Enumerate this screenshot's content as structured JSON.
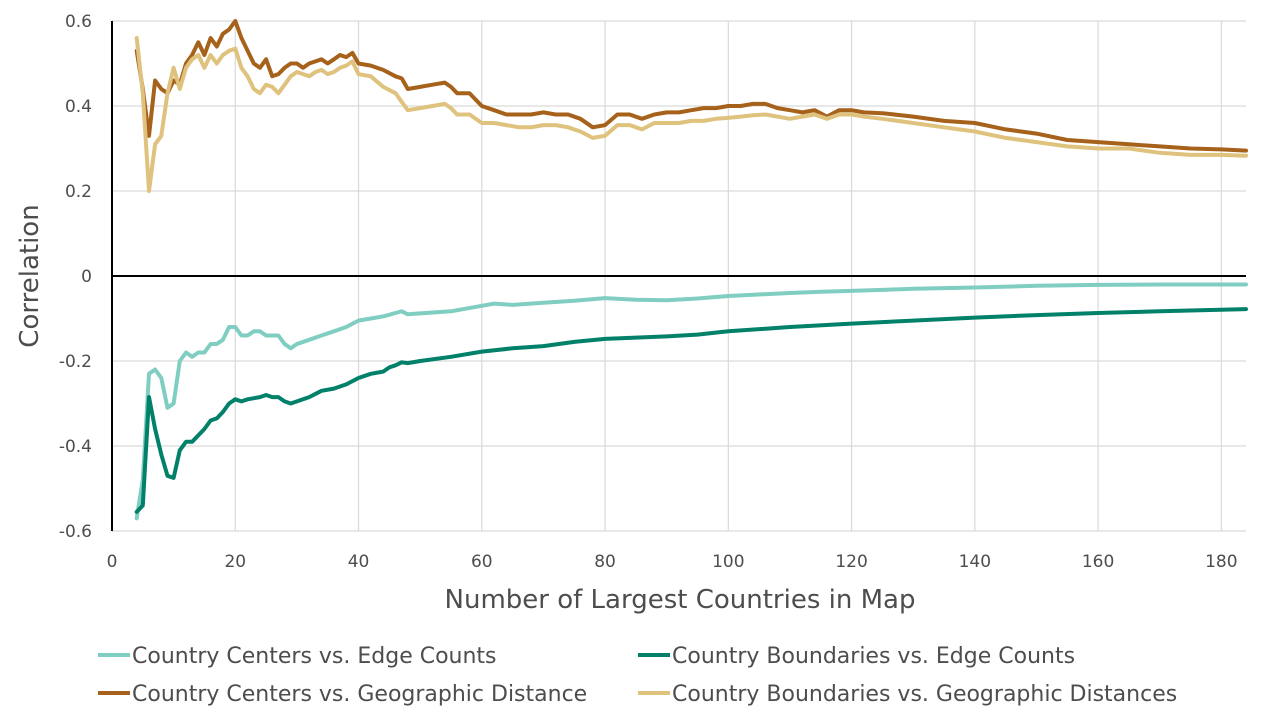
{
  "chart_data": {
    "type": "line",
    "xlabel": "Number of Largest Countries in Map",
    "ylabel": "Correlation",
    "xlim": [
      0,
      184
    ],
    "ylim": [
      -0.6,
      0.6
    ],
    "x_ticks": [
      "0",
      "20",
      "40",
      "60",
      "80",
      "100",
      "120",
      "140",
      "160",
      "180"
    ],
    "y_ticks": [
      "-0.6",
      "-0.4",
      "-0.2",
      "0",
      "0.2",
      "0.4",
      "0.6"
    ],
    "grid": true,
    "legend_position": "bottom",
    "series": [
      {
        "name": "Country Centers vs. Edge Counts",
        "color": "#80cdc1",
        "points": [
          [
            4,
            -0.57
          ],
          [
            5,
            -0.48
          ],
          [
            6,
            -0.23
          ],
          [
            7,
            -0.22
          ],
          [
            8,
            -0.24
          ],
          [
            9,
            -0.31
          ],
          [
            10,
            -0.3
          ],
          [
            11,
            -0.2
          ],
          [
            12,
            -0.18
          ],
          [
            13,
            -0.19
          ],
          [
            14,
            -0.18
          ],
          [
            15,
            -0.18
          ],
          [
            16,
            -0.16
          ],
          [
            17,
            -0.16
          ],
          [
            18,
            -0.15
          ],
          [
            19,
            -0.12
          ],
          [
            20,
            -0.12
          ],
          [
            21,
            -0.14
          ],
          [
            22,
            -0.14
          ],
          [
            23,
            -0.13
          ],
          [
            24,
            -0.13
          ],
          [
            25,
            -0.14
          ],
          [
            26,
            -0.14
          ],
          [
            27,
            -0.14
          ],
          [
            28,
            -0.16
          ],
          [
            29,
            -0.17
          ],
          [
            30,
            -0.16
          ],
          [
            32,
            -0.15
          ],
          [
            34,
            -0.14
          ],
          [
            36,
            -0.13
          ],
          [
            38,
            -0.12
          ],
          [
            40,
            -0.105
          ],
          [
            42,
            -0.1
          ],
          [
            44,
            -0.095
          ],
          [
            46,
            -0.087
          ],
          [
            47,
            -0.083
          ],
          [
            48,
            -0.09
          ],
          [
            50,
            -0.088
          ],
          [
            55,
            -0.083
          ],
          [
            60,
            -0.07
          ],
          [
            62,
            -0.065
          ],
          [
            65,
            -0.068
          ],
          [
            70,
            -0.063
          ],
          [
            75,
            -0.058
          ],
          [
            80,
            -0.052
          ],
          [
            85,
            -0.056
          ],
          [
            90,
            -0.057
          ],
          [
            95,
            -0.053
          ],
          [
            100,
            -0.047
          ],
          [
            110,
            -0.04
          ],
          [
            115,
            -0.037
          ],
          [
            120,
            -0.035
          ],
          [
            130,
            -0.03
          ],
          [
            140,
            -0.027
          ],
          [
            150,
            -0.023
          ],
          [
            160,
            -0.021
          ],
          [
            170,
            -0.02
          ],
          [
            184,
            -0.02
          ]
        ]
      },
      {
        "name": "Country Boundaries vs. Edge Counts",
        "color": "#01806a",
        "points": [
          [
            4,
            -0.555
          ],
          [
            5,
            -0.54
          ],
          [
            6,
            -0.285
          ],
          [
            7,
            -0.36
          ],
          [
            8,
            -0.42
          ],
          [
            9,
            -0.47
          ],
          [
            10,
            -0.475
          ],
          [
            11,
            -0.41
          ],
          [
            12,
            -0.39
          ],
          [
            13,
            -0.39
          ],
          [
            14,
            -0.375
          ],
          [
            15,
            -0.36
          ],
          [
            16,
            -0.34
          ],
          [
            17,
            -0.335
          ],
          [
            18,
            -0.32
          ],
          [
            19,
            -0.3
          ],
          [
            20,
            -0.29
          ],
          [
            21,
            -0.295
          ],
          [
            22,
            -0.29
          ],
          [
            24,
            -0.285
          ],
          [
            25,
            -0.28
          ],
          [
            26,
            -0.285
          ],
          [
            27,
            -0.285
          ],
          [
            28,
            -0.295
          ],
          [
            29,
            -0.3
          ],
          [
            30,
            -0.295
          ],
          [
            32,
            -0.285
          ],
          [
            34,
            -0.27
          ],
          [
            36,
            -0.265
          ],
          [
            38,
            -0.255
          ],
          [
            40,
            -0.24
          ],
          [
            42,
            -0.23
          ],
          [
            44,
            -0.225
          ],
          [
            45,
            -0.215
          ],
          [
            46,
            -0.21
          ],
          [
            47,
            -0.203
          ],
          [
            48,
            -0.205
          ],
          [
            50,
            -0.2
          ],
          [
            55,
            -0.19
          ],
          [
            60,
            -0.178
          ],
          [
            65,
            -0.17
          ],
          [
            70,
            -0.165
          ],
          [
            75,
            -0.155
          ],
          [
            80,
            -0.148
          ],
          [
            85,
            -0.145
          ],
          [
            90,
            -0.142
          ],
          [
            95,
            -0.138
          ],
          [
            100,
            -0.13
          ],
          [
            110,
            -0.12
          ],
          [
            120,
            -0.112
          ],
          [
            130,
            -0.105
          ],
          [
            140,
            -0.098
          ],
          [
            150,
            -0.092
          ],
          [
            160,
            -0.087
          ],
          [
            170,
            -0.083
          ],
          [
            184,
            -0.078
          ]
        ]
      },
      {
        "name": "Country Centers vs. Geographic Distance",
        "color": "#a6611a",
        "points": [
          [
            4,
            0.53
          ],
          [
            5,
            0.44
          ],
          [
            6,
            0.33
          ],
          [
            7,
            0.46
          ],
          [
            8,
            0.44
          ],
          [
            9,
            0.43
          ],
          [
            10,
            0.46
          ],
          [
            11,
            0.45
          ],
          [
            12,
            0.5
          ],
          [
            13,
            0.52
          ],
          [
            14,
            0.55
          ],
          [
            15,
            0.52
          ],
          [
            16,
            0.56
          ],
          [
            17,
            0.54
          ],
          [
            18,
            0.57
          ],
          [
            19,
            0.58
          ],
          [
            20,
            0.6
          ],
          [
            21,
            0.56
          ],
          [
            22,
            0.53
          ],
          [
            23,
            0.5
          ],
          [
            24,
            0.49
          ],
          [
            25,
            0.51
          ],
          [
            26,
            0.47
          ],
          [
            27,
            0.475
          ],
          [
            28,
            0.49
          ],
          [
            29,
            0.5
          ],
          [
            30,
            0.5
          ],
          [
            31,
            0.49
          ],
          [
            32,
            0.5
          ],
          [
            33,
            0.505
          ],
          [
            34,
            0.51
          ],
          [
            35,
            0.5
          ],
          [
            36,
            0.51
          ],
          [
            37,
            0.52
          ],
          [
            38,
            0.515
          ],
          [
            39,
            0.525
          ],
          [
            40,
            0.5
          ],
          [
            42,
            0.495
          ],
          [
            44,
            0.485
          ],
          [
            46,
            0.47
          ],
          [
            47,
            0.465
          ],
          [
            48,
            0.44
          ],
          [
            50,
            0.445
          ],
          [
            52,
            0.45
          ],
          [
            54,
            0.455
          ],
          [
            55,
            0.445
          ],
          [
            56,
            0.43
          ],
          [
            58,
            0.43
          ],
          [
            60,
            0.4
          ],
          [
            62,
            0.39
          ],
          [
            64,
            0.38
          ],
          [
            66,
            0.38
          ],
          [
            68,
            0.38
          ],
          [
            70,
            0.385
          ],
          [
            72,
            0.38
          ],
          [
            74,
            0.38
          ],
          [
            76,
            0.37
          ],
          [
            78,
            0.35
          ],
          [
            80,
            0.355
          ],
          [
            82,
            0.38
          ],
          [
            84,
            0.38
          ],
          [
            86,
            0.37
          ],
          [
            88,
            0.38
          ],
          [
            90,
            0.385
          ],
          [
            92,
            0.385
          ],
          [
            94,
            0.39
          ],
          [
            96,
            0.395
          ],
          [
            98,
            0.395
          ],
          [
            100,
            0.4
          ],
          [
            102,
            0.4
          ],
          [
            104,
            0.405
          ],
          [
            106,
            0.405
          ],
          [
            108,
            0.395
          ],
          [
            110,
            0.39
          ],
          [
            112,
            0.385
          ],
          [
            114,
            0.39
          ],
          [
            116,
            0.375
          ],
          [
            118,
            0.39
          ],
          [
            120,
            0.39
          ],
          [
            122,
            0.385
          ],
          [
            125,
            0.383
          ],
          [
            130,
            0.375
          ],
          [
            135,
            0.365
          ],
          [
            140,
            0.36
          ],
          [
            145,
            0.345
          ],
          [
            150,
            0.335
          ],
          [
            155,
            0.32
          ],
          [
            160,
            0.315
          ],
          [
            165,
            0.31
          ],
          [
            170,
            0.305
          ],
          [
            175,
            0.3
          ],
          [
            180,
            0.298
          ],
          [
            184,
            0.295
          ]
        ]
      },
      {
        "name": "Country Boundaries vs. Geographic Distances",
        "color": "#dfc27d",
        "points": [
          [
            4,
            0.56
          ],
          [
            5,
            0.43
          ],
          [
            6,
            0.2
          ],
          [
            7,
            0.31
          ],
          [
            8,
            0.33
          ],
          [
            9,
            0.43
          ],
          [
            10,
            0.49
          ],
          [
            11,
            0.44
          ],
          [
            12,
            0.49
          ],
          [
            13,
            0.51
          ],
          [
            14,
            0.52
          ],
          [
            15,
            0.49
          ],
          [
            16,
            0.52
          ],
          [
            17,
            0.5
          ],
          [
            18,
            0.52
          ],
          [
            19,
            0.53
          ],
          [
            20,
            0.535
          ],
          [
            21,
            0.49
          ],
          [
            22,
            0.47
          ],
          [
            23,
            0.44
          ],
          [
            24,
            0.43
          ],
          [
            25,
            0.45
          ],
          [
            26,
            0.445
          ],
          [
            27,
            0.43
          ],
          [
            28,
            0.45
          ],
          [
            29,
            0.47
          ],
          [
            30,
            0.48
          ],
          [
            31,
            0.475
          ],
          [
            32,
            0.47
          ],
          [
            33,
            0.48
          ],
          [
            34,
            0.485
          ],
          [
            35,
            0.475
          ],
          [
            36,
            0.48
          ],
          [
            37,
            0.49
          ],
          [
            38,
            0.495
          ],
          [
            39,
            0.505
          ],
          [
            40,
            0.475
          ],
          [
            42,
            0.47
          ],
          [
            44,
            0.445
          ],
          [
            46,
            0.43
          ],
          [
            47,
            0.41
          ],
          [
            48,
            0.39
          ],
          [
            50,
            0.395
          ],
          [
            52,
            0.4
          ],
          [
            54,
            0.405
          ],
          [
            55,
            0.395
          ],
          [
            56,
            0.38
          ],
          [
            58,
            0.38
          ],
          [
            60,
            0.36
          ],
          [
            62,
            0.36
          ],
          [
            64,
            0.355
          ],
          [
            66,
            0.35
          ],
          [
            68,
            0.35
          ],
          [
            70,
            0.355
          ],
          [
            72,
            0.355
          ],
          [
            74,
            0.35
          ],
          [
            76,
            0.34
          ],
          [
            78,
            0.325
          ],
          [
            80,
            0.33
          ],
          [
            82,
            0.355
          ],
          [
            84,
            0.355
          ],
          [
            86,
            0.345
          ],
          [
            88,
            0.36
          ],
          [
            90,
            0.36
          ],
          [
            92,
            0.36
          ],
          [
            94,
            0.365
          ],
          [
            96,
            0.365
          ],
          [
            98,
            0.37
          ],
          [
            100,
            0.372
          ],
          [
            102,
            0.375
          ],
          [
            104,
            0.378
          ],
          [
            106,
            0.38
          ],
          [
            108,
            0.375
          ],
          [
            110,
            0.37
          ],
          [
            112,
            0.375
          ],
          [
            114,
            0.38
          ],
          [
            116,
            0.37
          ],
          [
            118,
            0.38
          ],
          [
            120,
            0.38
          ],
          [
            122,
            0.375
          ],
          [
            125,
            0.37
          ],
          [
            130,
            0.36
          ],
          [
            135,
            0.35
          ],
          [
            140,
            0.34
          ],
          [
            145,
            0.325
          ],
          [
            150,
            0.315
          ],
          [
            155,
            0.305
          ],
          [
            160,
            0.3
          ],
          [
            165,
            0.3
          ],
          [
            170,
            0.29
          ],
          [
            175,
            0.285
          ],
          [
            180,
            0.285
          ],
          [
            184,
            0.283
          ]
        ]
      }
    ]
  }
}
